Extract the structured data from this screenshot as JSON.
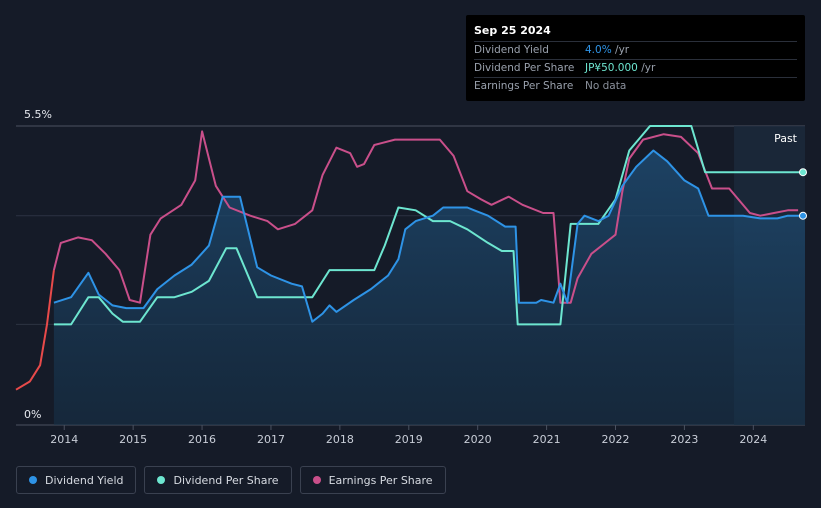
{
  "colors": {
    "background": "#151b28",
    "dividend_yield": "#2e93e6",
    "dividend_per_share": "#6de6d0",
    "earnings_per_share": "#c94f8a",
    "earnings_negative": "#e84a4a",
    "grid": "#3a4150"
  },
  "tooltip": {
    "date": "Sep 25 2024",
    "rows": [
      {
        "label": "Dividend Yield",
        "value": "4.0%",
        "unit": " /yr",
        "color": "#2e93e6"
      },
      {
        "label": "Dividend Per Share",
        "value": "JP¥50.000",
        "unit": " /yr",
        "color": "#6de6d0"
      },
      {
        "label": "Earnings Per Share",
        "value": "No data",
        "unit": "",
        "color": "#8a909b"
      }
    ]
  },
  "legend": [
    {
      "label": "Dividend Yield",
      "color": "#2e93e6"
    },
    {
      "label": "Dividend Per Share",
      "color": "#6de6d0"
    },
    {
      "label": "Earnings Per Share",
      "color": "#c94f8a"
    }
  ],
  "chart_data": {
    "type": "line",
    "title": "",
    "xlabel": "",
    "ylabel": "",
    "past_label": "Past",
    "y_labels": {
      "top": "5.5%",
      "bottom": "0%"
    },
    "ylim": [
      0,
      5.5
    ],
    "xlim": [
      2013.3,
      2024.75
    ],
    "x_ticks": [
      2014,
      2015,
      2016,
      2017,
      2018,
      2019,
      2020,
      2021,
      2022,
      2023,
      2024
    ],
    "x_tick_labels": [
      "2014",
      "2015",
      "2016",
      "2017",
      "2018",
      "2019",
      "2020",
      "2021",
      "2022",
      "2023",
      "2024"
    ],
    "past_region_start": 2023.72,
    "gridlines": [
      5.5,
      3.85,
      1.85,
      0
    ],
    "series": [
      {
        "name": "Dividend Yield",
        "unit": "%",
        "points": [
          [
            2013.85,
            2.25
          ],
          [
            2014.1,
            2.35
          ],
          [
            2014.35,
            2.8
          ],
          [
            2014.5,
            2.4
          ],
          [
            2014.7,
            2.2
          ],
          [
            2014.9,
            2.15
          ],
          [
            2015.15,
            2.15
          ],
          [
            2015.35,
            2.5
          ],
          [
            2015.6,
            2.75
          ],
          [
            2015.85,
            2.95
          ],
          [
            2016.1,
            3.3
          ],
          [
            2016.3,
            4.2
          ],
          [
            2016.55,
            4.2
          ],
          [
            2016.8,
            2.9
          ],
          [
            2017.0,
            2.75
          ],
          [
            2017.3,
            2.6
          ],
          [
            2017.45,
            2.55
          ],
          [
            2017.6,
            1.9
          ],
          [
            2017.75,
            2.05
          ],
          [
            2017.85,
            2.2
          ],
          [
            2017.95,
            2.08
          ],
          [
            2018.2,
            2.3
          ],
          [
            2018.45,
            2.5
          ],
          [
            2018.7,
            2.75
          ],
          [
            2018.85,
            3.05
          ],
          [
            2018.95,
            3.6
          ],
          [
            2019.1,
            3.75
          ],
          [
            2019.35,
            3.85
          ],
          [
            2019.5,
            4.0
          ],
          [
            2019.85,
            4.0
          ],
          [
            2019.95,
            3.95
          ],
          [
            2020.15,
            3.85
          ],
          [
            2020.4,
            3.65
          ],
          [
            2020.55,
            3.65
          ],
          [
            2020.6,
            2.25
          ],
          [
            2020.85,
            2.25
          ],
          [
            2020.92,
            2.3
          ],
          [
            2021.1,
            2.25
          ],
          [
            2021.2,
            2.6
          ],
          [
            2021.3,
            2.25
          ],
          [
            2021.45,
            3.7
          ],
          [
            2021.55,
            3.85
          ],
          [
            2021.75,
            3.75
          ],
          [
            2021.9,
            3.85
          ],
          [
            2022.1,
            4.4
          ],
          [
            2022.3,
            4.75
          ],
          [
            2022.55,
            5.05
          ],
          [
            2022.75,
            4.85
          ],
          [
            2023.0,
            4.5
          ],
          [
            2023.2,
            4.35
          ],
          [
            2023.35,
            3.85
          ],
          [
            2023.6,
            3.85
          ],
          [
            2023.85,
            3.85
          ],
          [
            2024.1,
            3.8
          ],
          [
            2024.35,
            3.8
          ],
          [
            2024.5,
            3.85
          ],
          [
            2024.75,
            3.85
          ]
        ]
      },
      {
        "name": "Dividend Per Share",
        "unit": "JP¥",
        "points": [
          [
            2013.85,
            1.85
          ],
          [
            2014.1,
            1.85
          ],
          [
            2014.35,
            2.35
          ],
          [
            2014.5,
            2.35
          ],
          [
            2014.7,
            2.05
          ],
          [
            2014.85,
            1.9
          ],
          [
            2015.1,
            1.9
          ],
          [
            2015.35,
            2.35
          ],
          [
            2015.6,
            2.35
          ],
          [
            2015.85,
            2.45
          ],
          [
            2016.1,
            2.65
          ],
          [
            2016.35,
            3.25
          ],
          [
            2016.5,
            3.25
          ],
          [
            2016.8,
            2.35
          ],
          [
            2017.2,
            2.35
          ],
          [
            2017.6,
            2.35
          ],
          [
            2017.85,
            2.85
          ],
          [
            2018.1,
            2.85
          ],
          [
            2018.5,
            2.85
          ],
          [
            2018.65,
            3.3
          ],
          [
            2018.85,
            4.0
          ],
          [
            2019.1,
            3.95
          ],
          [
            2019.35,
            3.75
          ],
          [
            2019.6,
            3.75
          ],
          [
            2019.85,
            3.6
          ],
          [
            2020.15,
            3.35
          ],
          [
            2020.35,
            3.2
          ],
          [
            2020.52,
            3.2
          ],
          [
            2020.58,
            1.85
          ],
          [
            2020.85,
            1.85
          ],
          [
            2021.2,
            1.85
          ],
          [
            2021.35,
            3.7
          ],
          [
            2021.45,
            3.7
          ],
          [
            2021.75,
            3.7
          ],
          [
            2022.0,
            4.15
          ],
          [
            2022.2,
            5.05
          ],
          [
            2022.5,
            5.5
          ],
          [
            2022.75,
            5.5
          ],
          [
            2023.1,
            5.5
          ],
          [
            2023.3,
            4.65
          ],
          [
            2023.5,
            4.65
          ],
          [
            2023.85,
            4.65
          ],
          [
            2024.3,
            4.65
          ],
          [
            2024.75,
            4.65
          ]
        ]
      },
      {
        "name": "Earnings Per Share",
        "unit": "JP¥",
        "points": [
          [
            2013.3,
            0.65
          ],
          [
            2013.5,
            0.8
          ],
          [
            2013.65,
            1.1
          ],
          [
            2013.75,
            1.85
          ],
          [
            2013.85,
            2.85
          ],
          [
            2013.95,
            3.35
          ],
          [
            2014.2,
            3.45
          ],
          [
            2014.4,
            3.4
          ],
          [
            2014.6,
            3.15
          ],
          [
            2014.8,
            2.85
          ],
          [
            2014.95,
            2.3
          ],
          [
            2015.1,
            2.25
          ],
          [
            2015.25,
            3.5
          ],
          [
            2015.4,
            3.8
          ],
          [
            2015.7,
            4.05
          ],
          [
            2015.9,
            4.5
          ],
          [
            2016.0,
            5.4
          ],
          [
            2016.2,
            4.4
          ],
          [
            2016.4,
            4.0
          ],
          [
            2016.7,
            3.85
          ],
          [
            2016.95,
            3.75
          ],
          [
            2017.1,
            3.6
          ],
          [
            2017.35,
            3.7
          ],
          [
            2017.6,
            3.95
          ],
          [
            2017.75,
            4.6
          ],
          [
            2017.95,
            5.1
          ],
          [
            2018.15,
            5.0
          ],
          [
            2018.25,
            4.75
          ],
          [
            2018.35,
            4.8
          ],
          [
            2018.5,
            5.15
          ],
          [
            2018.8,
            5.25
          ],
          [
            2019.1,
            5.25
          ],
          [
            2019.45,
            5.25
          ],
          [
            2019.65,
            4.95
          ],
          [
            2019.85,
            4.3
          ],
          [
            2020.05,
            4.15
          ],
          [
            2020.2,
            4.05
          ],
          [
            2020.45,
            4.2
          ],
          [
            2020.65,
            4.05
          ],
          [
            2020.95,
            3.9
          ],
          [
            2021.1,
            3.9
          ],
          [
            2021.2,
            2.25
          ],
          [
            2021.35,
            2.25
          ],
          [
            2021.45,
            2.7
          ],
          [
            2021.65,
            3.15
          ],
          [
            2021.85,
            3.35
          ],
          [
            2022.0,
            3.5
          ],
          [
            2022.1,
            4.3
          ],
          [
            2022.2,
            4.9
          ],
          [
            2022.4,
            5.25
          ],
          [
            2022.7,
            5.35
          ],
          [
            2022.95,
            5.3
          ],
          [
            2023.2,
            5.0
          ],
          [
            2023.4,
            4.35
          ],
          [
            2023.65,
            4.35
          ],
          [
            2023.95,
            3.9
          ],
          [
            2024.1,
            3.85
          ],
          [
            2024.3,
            3.9
          ],
          [
            2024.5,
            3.95
          ],
          [
            2024.65,
            3.95
          ]
        ]
      }
    ]
  }
}
